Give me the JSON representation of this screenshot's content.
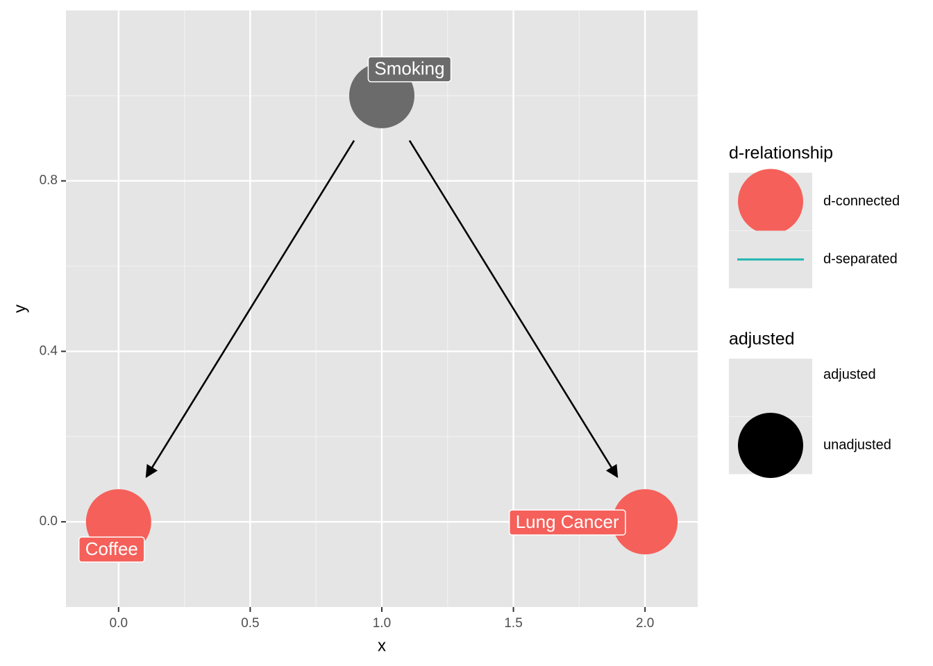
{
  "chart_data": {
    "type": "dag",
    "x_label": "x",
    "y_label": "y",
    "labels": [
      "Smoking",
      "Coffee",
      "Lung Cancer"
    ],
    "x": [
      1,
      0,
      2
    ],
    "values": [
      1,
      0,
      0
    ],
    "colors": [
      "#6b6b6b",
      "#f5605a",
      "#f5605a"
    ],
    "edges": [
      [
        0,
        1
      ],
      [
        0,
        2
      ]
    ],
    "xlim": [
      -0.2,
      2.2
    ],
    "ylim": [
      -0.2,
      1.2
    ],
    "xticks": [
      {
        "value": 0,
        "label": "0.0"
      },
      {
        "value": 0.5,
        "label": "0.5"
      },
      {
        "value": 1,
        "label": "1.0"
      },
      {
        "value": 1.5,
        "label": "1.5"
      },
      {
        "value": 2,
        "label": "2.0"
      }
    ],
    "yticks": [
      {
        "value": 0,
        "label": "0.0"
      },
      {
        "value": 0.4,
        "label": "0.4"
      },
      {
        "value": 0.8,
        "label": "0.8"
      }
    ],
    "xminor": [
      0.25,
      0.75,
      1.25,
      1.75
    ],
    "yminor": [
      0.2,
      0.6,
      1.0
    ],
    "grid": true,
    "legends": [
      {
        "title": "d-relationship",
        "items": [
          "d-connected",
          "d-separated"
        ],
        "colors": [
          "#f5605a",
          "#1fb5b0"
        ]
      },
      {
        "title": "adjusted",
        "items": [
          "adjusted",
          "unadjusted"
        ]
      }
    ]
  }
}
